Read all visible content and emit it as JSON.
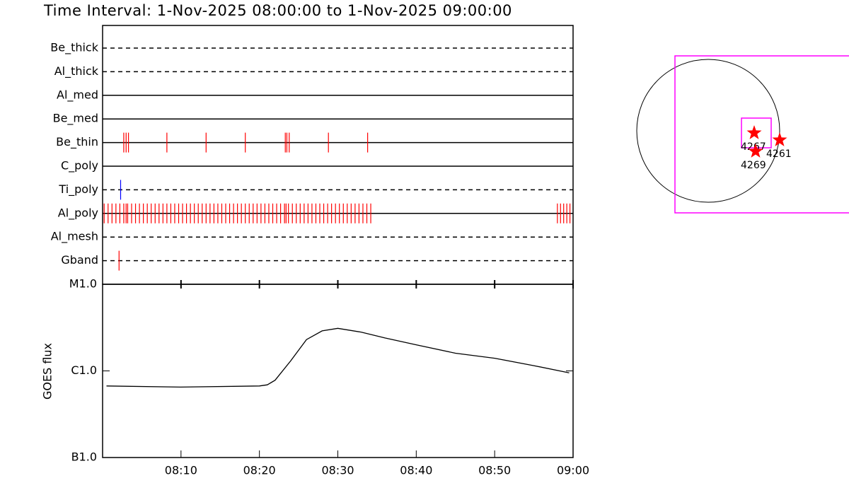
{
  "chart_data": [
    {
      "type": "event",
      "title": "Time Interval:  1-Nov-2025 08:00:00 to  1-Nov-2025 09:00:00",
      "categories": [
        "Be_thick",
        "Al_thick",
        "Al_med",
        "Be_med",
        "Be_thin",
        "C_poly",
        "Ti_poly",
        "Al_poly",
        "Al_mesh",
        "Gband"
      ],
      "line_styles": [
        "dashed",
        "dashed",
        "solid",
        "solid",
        "solid",
        "solid",
        "dashed",
        "solid",
        "dashed",
        "dashed"
      ],
      "event_colors": [
        "#ff0000",
        "#ff0000",
        "#ff0000",
        "#ff0000",
        "#ff0000",
        "#ff0000",
        "#0000ff",
        "#ff0000",
        "#ff0000",
        "#ff0000"
      ],
      "events": [
        [],
        [],
        [],
        [],
        [
          2.7,
          3.0,
          3.3,
          8.2,
          13.2,
          18.2,
          23.3,
          23.5,
          23.8,
          28.8,
          33.8
        ],
        [],
        [
          2.3
        ],
        [
          0.2,
          0.7,
          1.2,
          1.7,
          2.2,
          2.7,
          3.0,
          3.2,
          3.7,
          4.2,
          4.7,
          5.2,
          5.7,
          6.2,
          6.7,
          7.2,
          7.7,
          8.2,
          8.7,
          9.2,
          9.7,
          10.2,
          10.7,
          11.2,
          11.7,
          12.2,
          12.7,
          13.2,
          13.7,
          14.2,
          14.7,
          15.2,
          15.7,
          16.2,
          16.7,
          17.2,
          17.7,
          18.2,
          18.7,
          19.2,
          19.7,
          20.2,
          20.7,
          21.2,
          21.7,
          22.2,
          22.7,
          23.2,
          23.4,
          23.7,
          24.2,
          24.7,
          25.2,
          25.7,
          26.2,
          26.7,
          27.2,
          27.7,
          28.2,
          28.7,
          29.2,
          29.7,
          30.2,
          30.7,
          31.2,
          31.7,
          32.2,
          32.7,
          33.2,
          33.7,
          34.2,
          58.0,
          58.4,
          58.8,
          59.2,
          59.6
        ],
        [],
        [
          2.1
        ]
      ],
      "xlim": [
        0,
        60
      ]
    },
    {
      "type": "line",
      "y_label": "GOES flux",
      "x": [
        0.5,
        10,
        20,
        21,
        22,
        24,
        26,
        28,
        30,
        33,
        36,
        40,
        45,
        50,
        55,
        59.5
      ],
      "values": [
        6.7e-07,
        6.5e-07,
        6.7e-07,
        6.9e-07,
        7.8e-07,
        1.31e-06,
        2.3e-06,
        2.9e-06,
        3.1e-06,
        2.8e-06,
        2.4e-06,
        2e-06,
        1.6e-06,
        1.4e-06,
        1.15e-06,
        9.5e-07
      ],
      "color": "#000000",
      "log_y": true,
      "xlim": [
        0,
        60
      ],
      "xticks": [
        {
          "value": 10,
          "label": "08:10"
        },
        {
          "value": 20,
          "label": "08:20"
        },
        {
          "value": 30,
          "label": "08:30"
        },
        {
          "value": 40,
          "label": "08:40"
        },
        {
          "value": 50,
          "label": "08:50"
        },
        {
          "value": 60,
          "label": "09:00"
        }
      ],
      "ylim": [
        1e-07,
        1e-05
      ],
      "yticks": [
        {
          "value": 1e-07,
          "label": "B1.0"
        },
        {
          "value": 1e-06,
          "label": "C1.0"
        },
        {
          "value": 1e-05,
          "label": "M1.0"
        }
      ]
    }
  ],
  "map": {
    "regions": [
      "4267",
      "4261",
      "4269"
    ]
  }
}
